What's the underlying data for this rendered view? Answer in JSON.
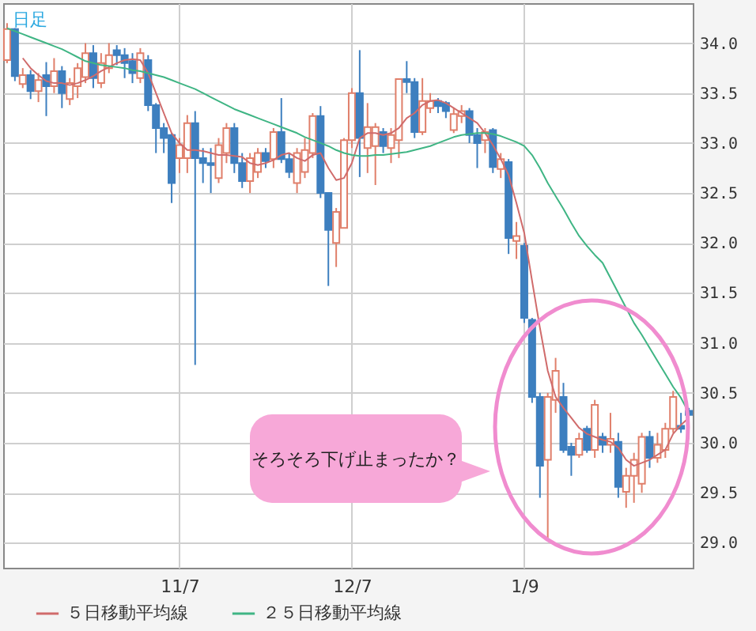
{
  "chart_data": {
    "type": "candlestick",
    "title": "日足",
    "categories": [
      null,
      null,
      null,
      null,
      null,
      null,
      null,
      null,
      null,
      null,
      null,
      null,
      null,
      null,
      null,
      null,
      null,
      null,
      null,
      null,
      null,
      null,
      "11/7",
      null,
      null,
      null,
      null,
      null,
      null,
      null,
      null,
      null,
      null,
      null,
      null,
      null,
      null,
      null,
      null,
      null,
      null,
      null,
      null,
      null,
      "12/7",
      null,
      null,
      null,
      null,
      null,
      null,
      null,
      null,
      null,
      null,
      null,
      null,
      null,
      null,
      null,
      null,
      null,
      null,
      null,
      null,
      null,
      "1/9",
      null,
      null,
      null,
      null,
      null,
      null,
      null,
      null,
      null,
      null,
      null,
      null,
      null,
      null,
      null,
      null,
      null,
      null,
      null,
      null,
      null
    ],
    "ohlc": [
      [
        33.83,
        34.2,
        33.8,
        34.14
      ],
      [
        34.14,
        34.15,
        33.62,
        33.67
      ],
      [
        33.59,
        33.75,
        33.55,
        33.68
      ],
      [
        33.68,
        33.73,
        33.44,
        33.52
      ],
      [
        33.52,
        33.7,
        33.41,
        33.63
      ],
      [
        33.68,
        33.81,
        33.27,
        33.57
      ],
      [
        33.57,
        33.85,
        33.5,
        33.72
      ],
      [
        33.72,
        33.77,
        33.35,
        33.5
      ],
      [
        33.44,
        33.65,
        33.38,
        33.6
      ],
      [
        33.57,
        33.8,
        33.45,
        33.75
      ],
      [
        33.66,
        34.0,
        33.6,
        33.9
      ],
      [
        33.9,
        33.98,
        33.55,
        33.65
      ],
      [
        33.6,
        33.9,
        33.55,
        33.8
      ],
      [
        33.75,
        34.0,
        33.7,
        33.88
      ],
      [
        33.93,
        33.98,
        33.78,
        33.88
      ],
      [
        33.88,
        33.95,
        33.65,
        33.8
      ],
      [
        33.82,
        33.9,
        33.6,
        33.7
      ],
      [
        33.65,
        33.95,
        33.6,
        33.9
      ],
      [
        33.83,
        33.88,
        33.32,
        33.38
      ],
      [
        33.38,
        33.4,
        32.9,
        33.15
      ],
      [
        33.15,
        33.2,
        32.9,
        33.05
      ],
      [
        33.08,
        33.1,
        32.4,
        32.6
      ],
      [
        32.85,
        33.05,
        32.7,
        32.98
      ],
      [
        32.85,
        33.28,
        32.7,
        33.2
      ],
      [
        33.2,
        33.32,
        30.78,
        32.85
      ],
      [
        32.85,
        32.95,
        32.6,
        32.8
      ],
      [
        32.8,
        32.95,
        32.5,
        32.78
      ],
      [
        32.65,
        33.05,
        32.6,
        32.98
      ],
      [
        32.9,
        33.2,
        32.8,
        33.15
      ],
      [
        33.15,
        33.2,
        32.7,
        32.8
      ],
      [
        32.8,
        32.9,
        32.55,
        32.62
      ],
      [
        32.62,
        32.9,
        32.5,
        32.85
      ],
      [
        32.71,
        32.95,
        32.65,
        32.9
      ],
      [
        32.9,
        32.95,
        32.75,
        32.82
      ],
      [
        32.84,
        33.15,
        32.75,
        33.11
      ],
      [
        33.11,
        33.45,
        32.8,
        32.84
      ],
      [
        32.84,
        32.9,
        32.65,
        32.71
      ],
      [
        32.6,
        32.95,
        32.5,
        32.9
      ],
      [
        32.71,
        33.05,
        32.65,
        32.93
      ],
      [
        32.9,
        33.3,
        32.85,
        33.27
      ],
      [
        33.27,
        33.37,
        32.45,
        32.5
      ],
      [
        32.5,
        32.5,
        31.57,
        32.13
      ],
      [
        32.0,
        32.35,
        31.76,
        32.31
      ],
      [
        32.15,
        33.05,
        32.15,
        33.03
      ],
      [
        33.03,
        33.55,
        32.95,
        33.5
      ],
      [
        33.5,
        33.93,
        32.66,
        33.05
      ],
      [
        32.95,
        33.4,
        32.7,
        33.16
      ],
      [
        32.97,
        33.2,
        32.58,
        33.16
      ],
      [
        33.11,
        33.15,
        32.9,
        32.97
      ],
      [
        32.95,
        33.15,
        32.8,
        33.08
      ],
      [
        33.03,
        33.64,
        32.85,
        33.64
      ],
      [
        33.64,
        33.82,
        33.5,
        33.61
      ],
      [
        33.61,
        33.65,
        33.05,
        33.11
      ],
      [
        33.11,
        33.65,
        33.08,
        33.42
      ],
      [
        33.35,
        33.5,
        33.3,
        33.42
      ],
      [
        33.42,
        33.45,
        33.3,
        33.37
      ],
      [
        33.4,
        33.42,
        33.25,
        33.32
      ],
      [
        33.13,
        33.35,
        33.1,
        33.29
      ],
      [
        33.27,
        33.38,
        33.2,
        33.32
      ],
      [
        33.32,
        33.35,
        33.0,
        33.08
      ],
      [
        33.08,
        33.15,
        32.75,
        33.0
      ],
      [
        33.03,
        33.15,
        32.9,
        33.11
      ],
      [
        33.13,
        33.15,
        32.7,
        32.76
      ],
      [
        32.74,
        32.9,
        32.65,
        32.84
      ],
      [
        32.81,
        32.84,
        31.89,
        32.05
      ],
      [
        32.02,
        32.21,
        31.84,
        32.07
      ],
      [
        31.97,
        32.0,
        31.2,
        31.25
      ],
      [
        31.23,
        31.25,
        30.4,
        30.46
      ],
      [
        30.46,
        30.5,
        29.45,
        29.77
      ],
      [
        29.83,
        30.5,
        29.03,
        30.46
      ],
      [
        30.43,
        30.85,
        30.3,
        30.72
      ],
      [
        30.46,
        30.6,
        29.9,
        29.93
      ],
      [
        29.96,
        30.0,
        29.67,
        29.88
      ],
      [
        29.88,
        30.1,
        29.85,
        30.04
      ],
      [
        30.14,
        30.17,
        29.9,
        29.93
      ],
      [
        29.93,
        30.43,
        29.85,
        30.38
      ],
      [
        30.06,
        30.1,
        29.9,
        29.98
      ],
      [
        29.98,
        30.3,
        29.9,
        30.04
      ],
      [
        30.01,
        30.1,
        29.45,
        29.56
      ],
      [
        29.51,
        29.75,
        29.35,
        29.67
      ],
      [
        29.67,
        29.9,
        29.4,
        29.83
      ],
      [
        29.59,
        30.1,
        29.5,
        30.06
      ],
      [
        30.06,
        30.12,
        29.75,
        29.85
      ],
      [
        29.85,
        30.1,
        29.8,
        29.98
      ],
      [
        29.93,
        30.2,
        29.85,
        30.14
      ],
      [
        30.14,
        30.52,
        30.1,
        30.46
      ],
      [
        30.17,
        30.3,
        30.1,
        30.14
      ],
      [
        30.32,
        30.35,
        30.25,
        30.28
      ]
    ],
    "series": [
      {
        "name": "５日移動平均線",
        "type": "line",
        "color": "#d06b6b",
        "values": [
          null,
          null,
          33.85,
          33.75,
          33.68,
          33.62,
          33.6,
          33.6,
          33.58,
          33.6,
          33.63,
          33.67,
          33.72,
          33.76,
          33.8,
          33.83,
          33.84,
          33.83,
          33.7,
          33.5,
          33.3,
          33.1,
          33.0,
          32.93,
          32.93,
          32.92,
          32.9,
          32.88,
          32.88,
          32.87,
          32.86,
          32.8,
          32.78,
          32.8,
          32.83,
          32.88,
          32.9,
          32.85,
          32.82,
          32.88,
          32.9,
          32.75,
          32.63,
          32.65,
          32.8,
          33.05,
          33.1,
          33.1,
          33.08,
          33.1,
          33.15,
          33.25,
          33.3,
          33.38,
          33.42,
          33.43,
          33.4,
          33.35,
          33.3,
          33.25,
          33.2,
          33.1,
          32.98,
          32.84,
          32.68,
          32.4,
          32.1,
          31.62,
          31.15,
          30.72,
          30.46,
          30.35,
          30.25,
          30.15,
          30.09,
          30.06,
          30.03,
          30.01,
          29.95,
          29.83,
          29.77,
          29.8,
          29.83,
          29.88,
          29.93,
          30.09,
          30.18,
          30.25
        ]
      },
      {
        "name": "２５日移動平均線",
        "type": "line",
        "color": "#3fb584",
        "values": [
          34.15,
          34.12,
          34.09,
          34.06,
          34.03,
          34.0,
          33.97,
          33.94,
          33.9,
          33.86,
          33.82,
          33.8,
          33.78,
          33.77,
          33.76,
          33.75,
          33.73,
          33.72,
          33.7,
          33.68,
          33.66,
          33.63,
          33.6,
          33.57,
          33.54,
          33.5,
          33.46,
          33.42,
          33.38,
          33.34,
          33.31,
          33.28,
          33.25,
          33.22,
          33.19,
          33.16,
          33.13,
          33.1,
          33.06,
          33.03,
          33.0,
          32.97,
          32.93,
          32.9,
          32.88,
          32.87,
          32.87,
          32.88,
          32.88,
          32.89,
          32.9,
          32.91,
          32.93,
          32.95,
          32.97,
          33.0,
          33.03,
          33.06,
          33.08,
          33.09,
          33.1,
          33.1,
          33.09,
          33.07,
          33.04,
          33.01,
          32.97,
          32.88,
          32.75,
          32.6,
          32.47,
          32.34,
          32.2,
          32.07,
          31.97,
          31.88,
          31.8,
          31.65,
          31.5,
          31.35,
          31.2,
          31.08,
          30.95,
          30.82,
          30.69,
          30.56,
          30.45,
          30.3
        ]
      }
    ],
    "ylim": [
      28.75,
      34.4
    ],
    "yticks": [
      {
        "value": 29,
        "label": "29.0"
      },
      {
        "value": 29.5,
        "label": "29.5"
      },
      {
        "value": 30,
        "label": "30.0"
      },
      {
        "value": 30.5,
        "label": "30.5"
      },
      {
        "value": 31,
        "label": "31.0"
      },
      {
        "value": 31.5,
        "label": "31.5"
      },
      {
        "value": 32,
        "label": "32.0"
      },
      {
        "value": 32.5,
        "label": "32.5"
      },
      {
        "value": 33,
        "label": "33.0"
      },
      {
        "value": 33.5,
        "label": "33.5"
      },
      {
        "value": 34,
        "label": "34.0"
      }
    ],
    "grid": true,
    "legend": "bottom left",
    "annotations": [
      "そろそろ下げ止まったか？"
    ]
  }
}
